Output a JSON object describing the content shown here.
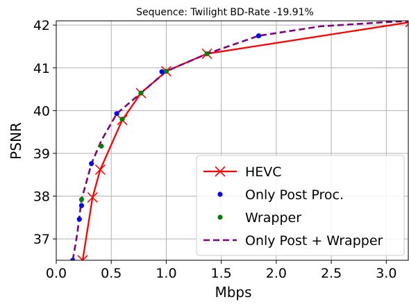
{
  "chart_data": {
    "type": "line",
    "title": "Sequence: Twilight  BD-Rate -19.91%",
    "xlabel": "Mbps",
    "ylabel": "PSNR",
    "xlim": [
      0.0,
      3.2
    ],
    "ylim": [
      36.5,
      42.1
    ],
    "xticks": [
      0.0,
      0.5,
      1.0,
      1.5,
      2.0,
      2.5,
      3.0
    ],
    "xtick_labels": [
      "0.0",
      "0.5",
      "1.0",
      "1.5",
      "2.0",
      "2.5",
      "3.0"
    ],
    "yticks": [
      37,
      38,
      39,
      40,
      41,
      42
    ],
    "ytick_labels": [
      "37",
      "38",
      "39",
      "40",
      "41",
      "42"
    ],
    "grid": true,
    "legend_position": "bottom-right",
    "series": [
      {
        "name": "HEVC",
        "color": "#ff0000",
        "style": "solid-line-x-markers",
        "x": [
          0.24,
          0.33,
          0.4,
          0.6,
          0.77,
          1.0,
          1.37,
          3.22
        ],
        "y": [
          36.5,
          37.97,
          38.62,
          39.78,
          40.41,
          40.92,
          41.33,
          42.07
        ]
      },
      {
        "name": "Only Post Proc.",
        "color": "#0000ff",
        "style": "dots",
        "x": [
          0.15,
          0.21,
          0.23,
          0.32,
          0.55,
          0.96,
          1.84
        ],
        "y": [
          36.5,
          37.46,
          37.78,
          38.76,
          39.93,
          40.91,
          41.75
        ]
      },
      {
        "name": "Wrapper",
        "color": "#008000",
        "style": "dots",
        "x": [
          0.23,
          0.41,
          0.6,
          0.77,
          1.0,
          1.37
        ],
        "y": [
          37.92,
          39.17,
          39.8,
          40.41,
          40.92,
          41.33
        ]
      },
      {
        "name": "Only Post + Wrapper",
        "color": "#800080",
        "style": "dashed-line",
        "x": [
          0.15,
          0.19,
          0.23,
          0.32,
          0.41,
          0.55,
          0.77,
          1.0,
          1.37,
          1.84,
          2.4,
          3.0,
          3.22
        ],
        "y": [
          36.5,
          37.1,
          37.92,
          38.76,
          39.3,
          39.93,
          40.41,
          40.92,
          41.33,
          41.75,
          41.97,
          42.07,
          42.1
        ]
      }
    ]
  }
}
